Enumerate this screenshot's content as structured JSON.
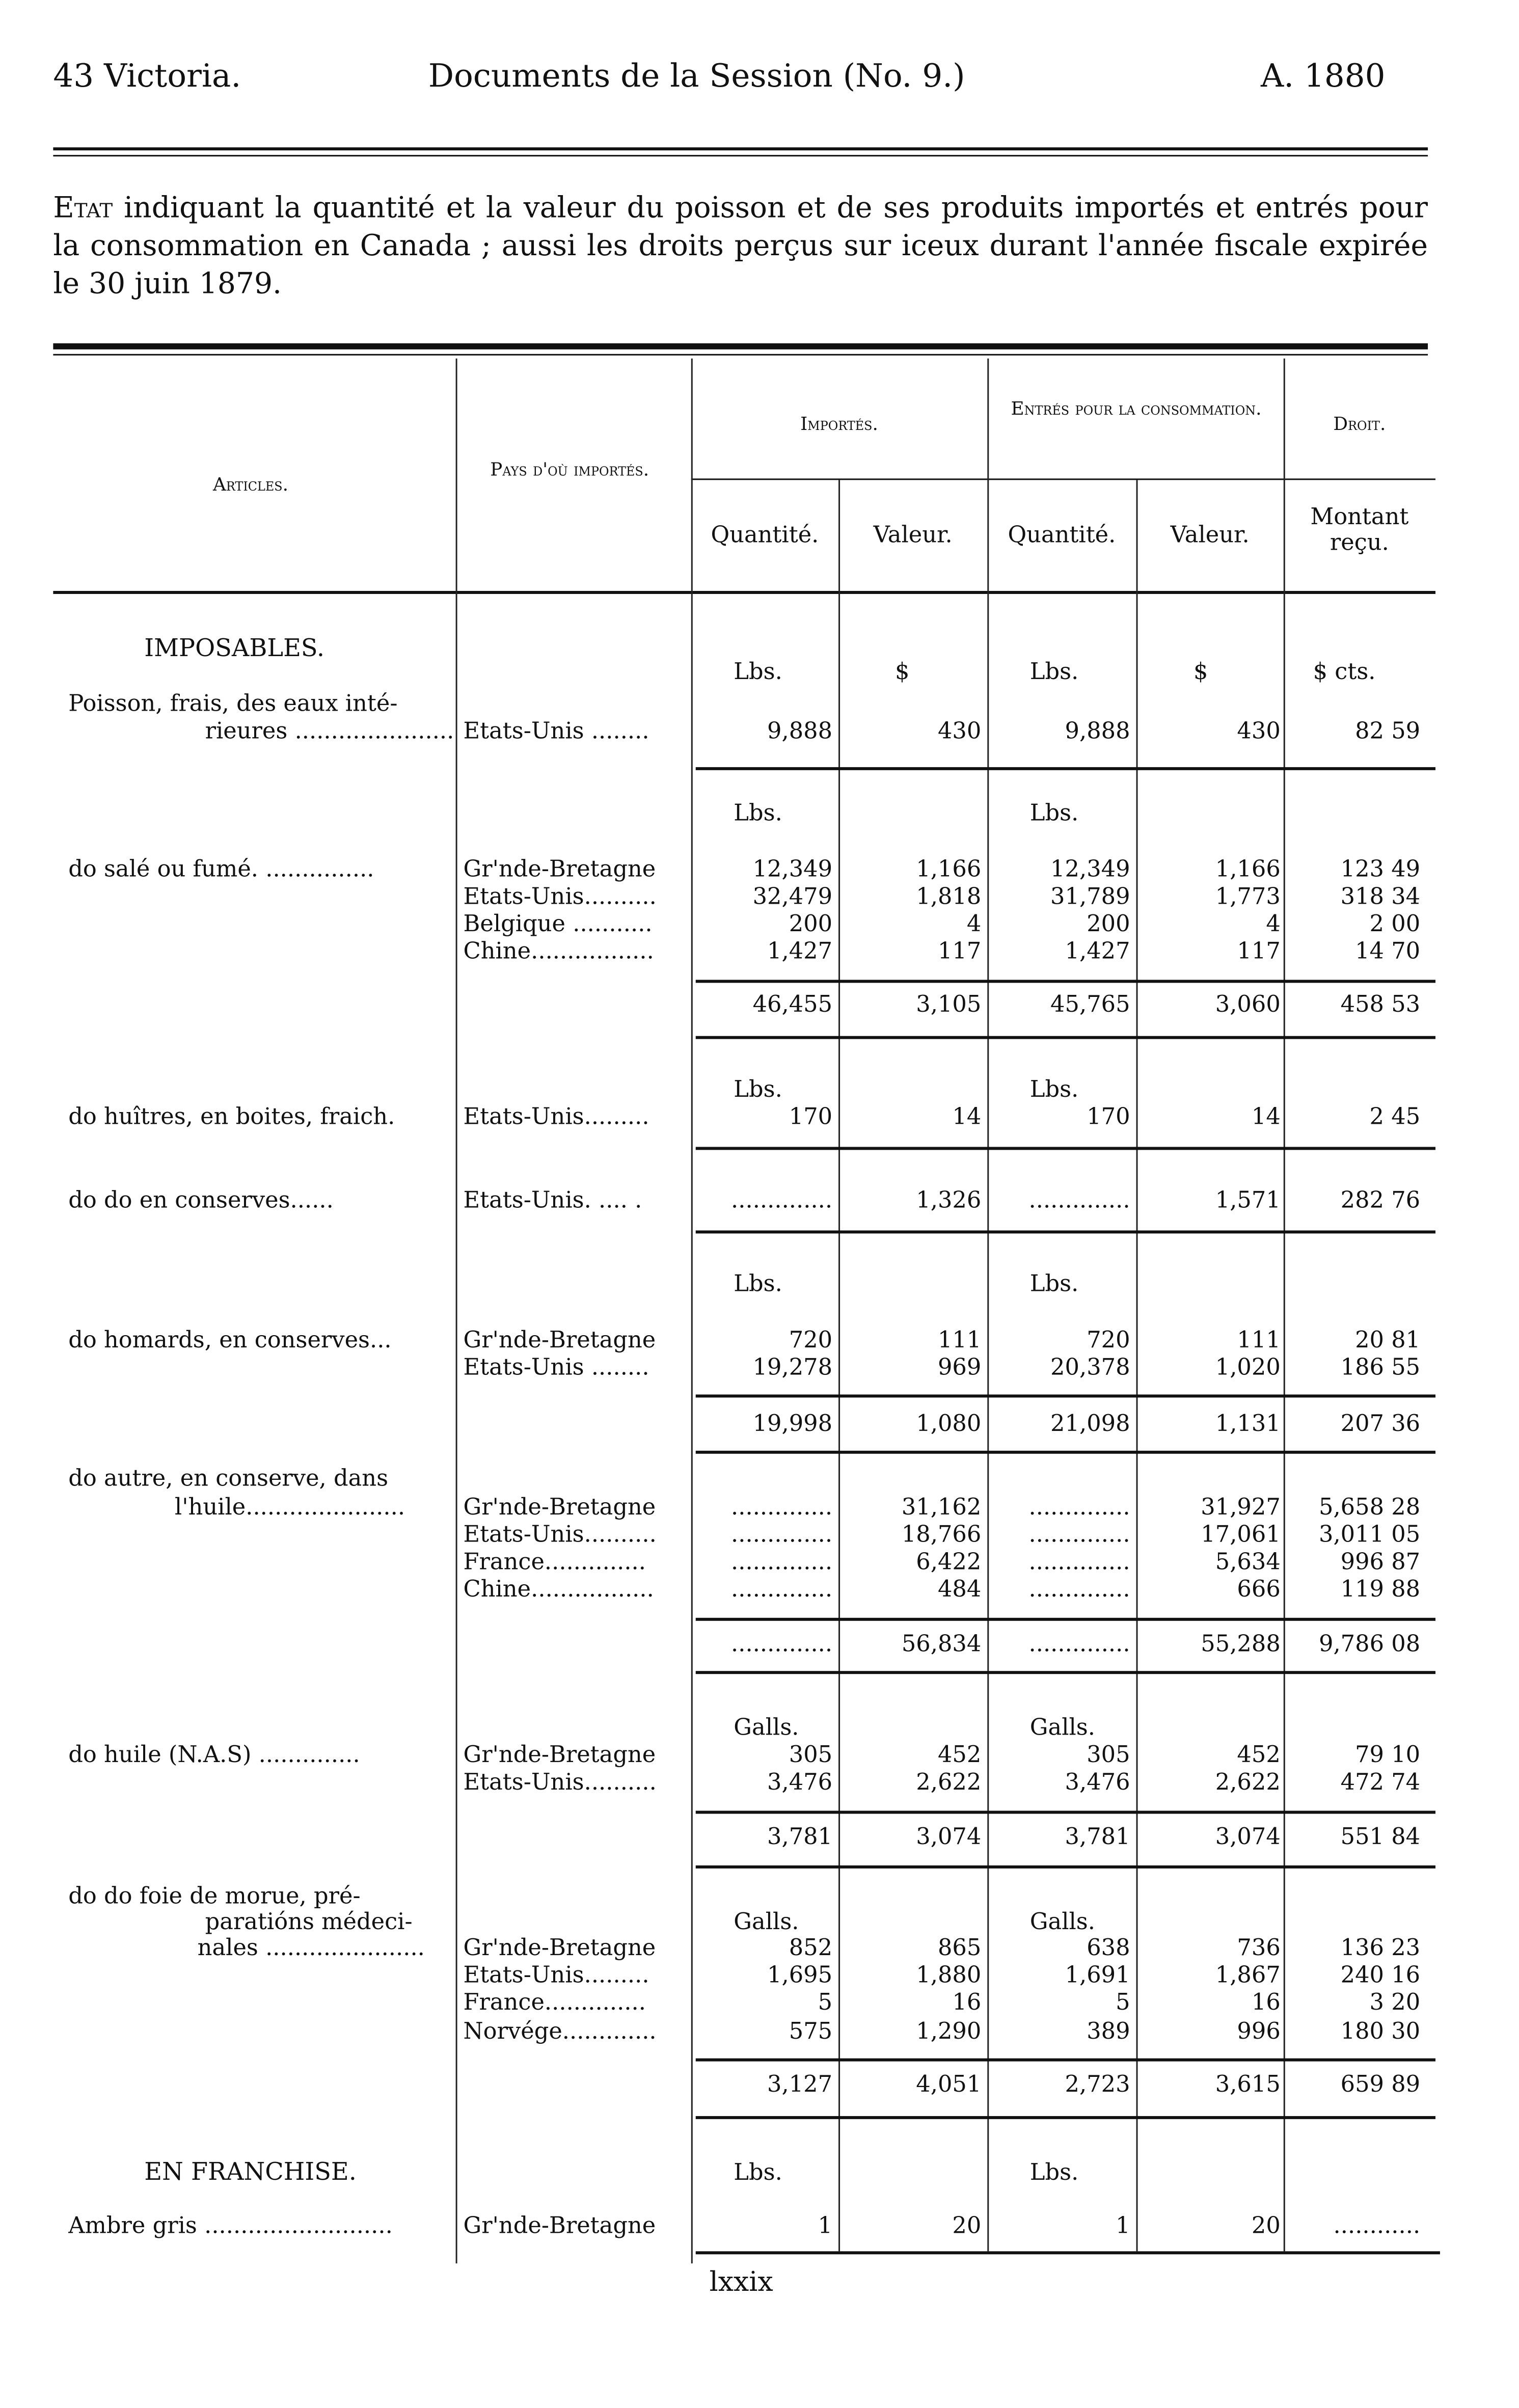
{
  "header": {
    "left": "43 Victoria.",
    "center": "Documents de la Session (No. 9.)",
    "right": "A. 1880"
  },
  "intro": {
    "lead": "Etat",
    "text": "indiquant la quantité et la valeur du poisson et de ses produits importés et entrés pour la consommation en Canada ; aussi les droits perçus sur iceux durant l'année fiscale expirée le 30 juin 1879."
  },
  "columns": {
    "articles": "Articles.",
    "pays": "Pays d'où importés.",
    "importes": "Importés.",
    "entres": "Entrés pour la consommation.",
    "droit": "Droit.",
    "quantite1": "Quantité.",
    "valeur1": "Valeur.",
    "quantite2": "Quantité.",
    "valeur2": "Valeur.",
    "montant": "Montant reçu."
  },
  "rows": [
    {
      "type": "section",
      "article": "IMPOSABLES."
    },
    {
      "type": "units",
      "iq": "Lbs.",
      "iv": "$",
      "eq": "Lbs.",
      "ev": "$",
      "duty": "$ cts."
    },
    {
      "type": "text",
      "article": "Poisson, frais, des eaux inté-"
    },
    {
      "type": "data",
      "article": "rieures ......................",
      "country": "Etats-Unis ........",
      "iq": "9,888",
      "iv": "430",
      "eq": "9,888",
      "ev": "430",
      "duty": "82 59"
    },
    {
      "type": "units",
      "iq": "Lbs.",
      "eq": "Lbs."
    },
    {
      "type": "data",
      "article": "do  salé ou fumé. ...............",
      "country": "Gr'nde-Bretagne",
      "iq": "12,349",
      "iv": "1,166",
      "eq": "12,349",
      "ev": "1,166",
      "duty": "123 49"
    },
    {
      "type": "data",
      "country": "Etats-Unis..........",
      "iq": "32,479",
      "iv": "1,818",
      "eq": "31,789",
      "ev": "1,773",
      "duty": "318 34"
    },
    {
      "type": "data",
      "country": "Belgique ...........",
      "iq": "200",
      "iv": "4",
      "eq": "200",
      "ev": "4",
      "duty": "2 00"
    },
    {
      "type": "data",
      "country": "Chine.................",
      "iq": "1,427",
      "iv": "117",
      "eq": "1,427",
      "ev": "117",
      "duty": "14 70"
    },
    {
      "type": "total",
      "iq": "46,455",
      "iv": "3,105",
      "eq": "45,765",
      "ev": "3,060",
      "duty": "458 53"
    },
    {
      "type": "units",
      "iq": "Lbs.",
      "eq": "Lbs."
    },
    {
      "type": "data",
      "article": "do  huîtres, en boites, fraich.",
      "country": "Etats-Unis.........",
      "iq": "170",
      "iv": "14",
      "eq": "170",
      "ev": "14",
      "duty": "2 45"
    },
    {
      "type": "data",
      "article": "do      do     en conserves......",
      "country": "Etats-Unis. .... .",
      "iq": "..............",
      "iv": "1,326",
      "eq": "..............",
      "ev": "1,571",
      "duty": "282 76"
    },
    {
      "type": "units",
      "iq": "Lbs.",
      "eq": "Lbs."
    },
    {
      "type": "data",
      "article": "do  homards, en conserves...",
      "country": "Gr'nde-Bretagne",
      "iq": "720",
      "iv": "111",
      "eq": "720",
      "ev": "111",
      "duty": "20 81"
    },
    {
      "type": "data",
      "country": "Etats-Unis ........",
      "iq": "19,278",
      "iv": "969",
      "eq": "20,378",
      "ev": "1,020",
      "duty": "186 55"
    },
    {
      "type": "total",
      "iq": "19,998",
      "iv": "1,080",
      "eq": "21,098",
      "ev": "1,131",
      "duty": "207 36"
    },
    {
      "type": "text",
      "article": "do  autre, en conserve, dans"
    },
    {
      "type": "data",
      "article": "l'huile......................",
      "country": "Gr'nde-Bretagne",
      "iq": "..............",
      "iv": "31,162",
      "eq": "..............",
      "ev": "31,927",
      "duty": "5,658 28"
    },
    {
      "type": "data",
      "country": "Etats-Unis..........",
      "iq": "..............",
      "iv": "18,766",
      "eq": "..............",
      "ev": "17,061",
      "duty": "3,011 05"
    },
    {
      "type": "data",
      "country": "France..............",
      "iq": "..............",
      "iv": "6,422",
      "eq": "..............",
      "ev": "5,634",
      "duty": "996 87"
    },
    {
      "type": "data",
      "country": "Chine.................",
      "iq": "..............",
      "iv": "484",
      "eq": "..............",
      "ev": "666",
      "duty": "119 88"
    },
    {
      "type": "total",
      "iq": "..............",
      "iv": "56,834",
      "eq": "..............",
      "ev": "55,288",
      "duty": "9,786 08"
    },
    {
      "type": "units",
      "iq": "Galls.",
      "eq": "Galls."
    },
    {
      "type": "data",
      "article": "do  huile (N.A.S) ..............",
      "country": "Gr'nde-Bretagne",
      "iq": "305",
      "iv": "452",
      "eq": "305",
      "ev": "452",
      "duty": "79 10"
    },
    {
      "type": "data",
      "country": "Etats-Unis..........",
      "iq": "3,476",
      "iv": "2,622",
      "eq": "3,476",
      "ev": "2,622",
      "duty": "472 74"
    },
    {
      "type": "total",
      "iq": "3,781",
      "iv": "3,074",
      "eq": "3,781",
      "ev": "3,074",
      "duty": "551 84"
    },
    {
      "type": "text",
      "article": "do    do foie de morue, pré-"
    },
    {
      "type": "units",
      "article": "paratións   médeci-",
      "iq": "Galls.",
      "eq": "Galls."
    },
    {
      "type": "data",
      "article": "nales ......................",
      "country": "Gr'nde-Bretagne",
      "iq": "852",
      "iv": "865",
      "eq": "638",
      "ev": "736",
      "duty": "136 23"
    },
    {
      "type": "data",
      "country": "Etats-Unis.........",
      "iq": "1,695",
      "iv": "1,880",
      "eq": "1,691",
      "ev": "1,867",
      "duty": "240 16"
    },
    {
      "type": "data",
      "country": "France..............",
      "iq": "5",
      "iv": "16",
      "eq": "5",
      "ev": "16",
      "duty": "3 20"
    },
    {
      "type": "data",
      "country": "Norvége.............",
      "iq": "575",
      "iv": "1,290",
      "eq": "389",
      "ev": "996",
      "duty": "180 30"
    },
    {
      "type": "total",
      "iq": "3,127",
      "iv": "4,051",
      "eq": "2,723",
      "ev": "3,615",
      "duty": "659 89"
    },
    {
      "type": "section",
      "article": "EN FRANCHISE.",
      "iq": "Lbs.",
      "eq": "Lbs."
    },
    {
      "type": "data",
      "article": "Ambre gris ..........................",
      "country": "Gr'nde-Bretagne",
      "iq": "1",
      "iv": "20",
      "eq": "1",
      "ev": "20",
      "duty": "............"
    }
  ],
  "footer": {
    "page": "lxxix"
  }
}
